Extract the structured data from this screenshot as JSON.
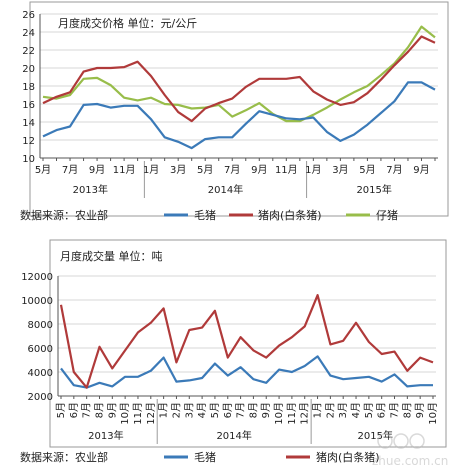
{
  "chart_data": [
    {
      "type": "line",
      "title": "月度成交价格 单位：元/公斤",
      "ylim": [
        10,
        26
      ],
      "y_ticks": [
        10,
        12,
        14,
        16,
        18,
        20,
        22,
        24,
        26
      ],
      "x": [
        "5月",
        "6月",
        "7月",
        "8月",
        "9月",
        "10月",
        "11月",
        "12月",
        "1月",
        "2月",
        "3月",
        "4月",
        "5月",
        "6月",
        "7月",
        "8月",
        "9月",
        "10月",
        "11月",
        "12月",
        "1月",
        "2月",
        "3月",
        "4月",
        "5月",
        "6月",
        "7月",
        "8月",
        "9月",
        "10月"
      ],
      "x_tick_labels": [
        "5月",
        "7月",
        "9月",
        "11月",
        "1月",
        "3月",
        "5月",
        "7月",
        "9月",
        "11月",
        "1月",
        "3月",
        "5月",
        "7月",
        "9月"
      ],
      "year_labels": [
        "2013年",
        "2014年",
        "2015年"
      ],
      "series": [
        {
          "name": "毛猪",
          "color": "#3b7ab8",
          "values": [
            12.4,
            13.1,
            13.5,
            15.9,
            16.0,
            15.6,
            15.8,
            15.8,
            14.3,
            12.3,
            11.8,
            11.1,
            12.1,
            12.3,
            12.3,
            13.8,
            15.2,
            14.8,
            14.4,
            14.3,
            14.5,
            12.9,
            11.9,
            12.6,
            13.7,
            15.0,
            16.3,
            18.4,
            18.4,
            17.6
          ]
        },
        {
          "name": "猪肉(白条猪)",
          "color": "#b03a3a",
          "values": [
            16.1,
            16.8,
            17.3,
            19.6,
            20.0,
            20.0,
            20.1,
            20.7,
            19.1,
            17.0,
            15.1,
            14.1,
            15.5,
            16.1,
            16.6,
            17.9,
            18.8,
            18.8,
            18.8,
            19.0,
            17.4,
            16.5,
            15.9,
            16.2,
            17.2,
            18.7,
            20.3,
            21.8,
            23.5,
            22.8
          ]
        },
        {
          "name": "仔猪",
          "color": "#98bd4a",
          "values": [
            16.8,
            16.6,
            17.0,
            18.8,
            18.9,
            18.1,
            16.7,
            16.4,
            16.7,
            16.0,
            15.9,
            15.5,
            15.6,
            15.9,
            14.6,
            15.3,
            16.1,
            14.9,
            14.1,
            14.1,
            14.8,
            15.6,
            16.5,
            17.3,
            18.0,
            19.2,
            20.5,
            22.3,
            24.6,
            23.4
          ]
        }
      ]
    },
    {
      "type": "line",
      "title": "月度成交量 单位：吨",
      "ylim": [
        2000,
        12000
      ],
      "y_ticks": [
        2000,
        4000,
        6000,
        8000,
        10000,
        12000
      ],
      "x": [
        "5月",
        "6月",
        "7月",
        "8月",
        "9月",
        "10月",
        "11月",
        "12月",
        "1月",
        "2月",
        "3月",
        "4月",
        "5月",
        "6月",
        "7月",
        "8月",
        "9月",
        "10月",
        "11月",
        "12月",
        "1月",
        "2月",
        "3月",
        "4月",
        "5月",
        "6月",
        "7月",
        "8月",
        "9月",
        "10月"
      ],
      "x_tick_labels": [
        "5月",
        "6月",
        "7月",
        "8月",
        "9月",
        "10月",
        "11月",
        "12月",
        "1月",
        "2月",
        "3月",
        "4月",
        "5月",
        "6月",
        "7月",
        "8月",
        "9月",
        "10月",
        "11月",
        "12月",
        "1月",
        "2月",
        "3月",
        "4月",
        "5月",
        "6月",
        "7月",
        "8月",
        "9月",
        "10月"
      ],
      "year_labels": [
        "2013年",
        "2014年",
        "2015年"
      ],
      "series": [
        {
          "name": "毛猪",
          "color": "#3b7ab8",
          "values": [
            4300,
            2900,
            2700,
            3100,
            2800,
            3600,
            3600,
            4100,
            5200,
            3200,
            3300,
            3500,
            4700,
            3700,
            4400,
            3400,
            3100,
            4200,
            4000,
            4500,
            5300,
            3700,
            3400,
            3500,
            3600,
            3200,
            3800,
            2800,
            2900,
            2900
          ]
        },
        {
          "name": "猪肉(白条猪)",
          "color": "#b03a3a",
          "values": [
            9600,
            4000,
            2700,
            6100,
            4300,
            5800,
            7300,
            8100,
            9300,
            4800,
            7500,
            7700,
            9100,
            5200,
            6900,
            5800,
            5200,
            6200,
            6900,
            7800,
            10400,
            6300,
            6600,
            8100,
            6500,
            5500,
            5700,
            4100,
            5200,
            4800
          ]
        }
      ]
    }
  ],
  "footers": [
    {
      "source": "数据来源：农业部",
      "legend": [
        "毛猪",
        "猪肉(白条猪)",
        "仔猪"
      ]
    },
    {
      "source": "数据来源：农业部",
      "legend": [
        "毛猪",
        "猪肉(白条猪)"
      ]
    }
  ],
  "watermark": "zhue.com.cn"
}
